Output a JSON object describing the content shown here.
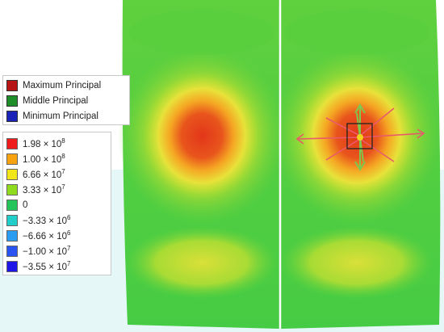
{
  "principal_legend": [
    {
      "label": "Maximum Principal",
      "color": "#b71515"
    },
    {
      "label": "Middle Principal",
      "color": "#1e8e2a"
    },
    {
      "label": "Minimum Principal",
      "color": "#1a22b8"
    }
  ],
  "stress_scale": [
    {
      "label": "1.98 × 10",
      "exp": "8",
      "color": "#ee1c1c"
    },
    {
      "label": "1.00 × 10",
      "exp": "8",
      "color": "#f7a20e"
    },
    {
      "label": "6.66 × 10",
      "exp": "7",
      "color": "#f2e51a"
    },
    {
      "label": "3.33 × 10",
      "exp": "7",
      "color": "#8fdc1e"
    },
    {
      "label": "0",
      "exp": "",
      "color": "#23c55a"
    },
    {
      "label": "−3.33 × 10",
      "exp": "6",
      "color": "#20cfc9"
    },
    {
      "label": "−6.66 × 10",
      "exp": "6",
      "color": "#2a9df2"
    },
    {
      "label": "−1.00 × 10",
      "exp": "7",
      "color": "#2a54f2"
    },
    {
      "label": "−3.55 × 10",
      "exp": "7",
      "color": "#1e16e6"
    }
  ],
  "colors": {
    "field_green": "#49cf43",
    "field_red": "#e8351a",
    "tension_arrow": "#e85a6a",
    "compression_arrow": "#7ec850",
    "divider": "#ffffff"
  }
}
